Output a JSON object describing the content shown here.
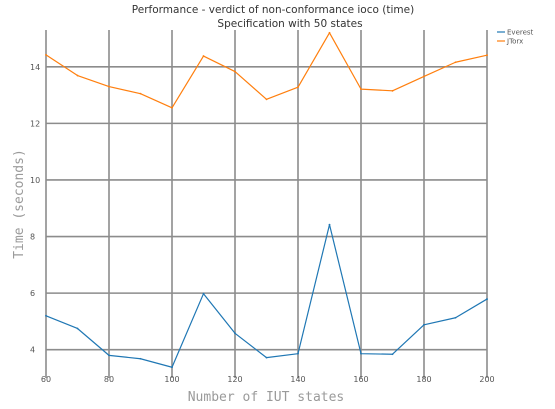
{
  "chart_data": {
    "type": "line",
    "title": "Performance - verdict of non-conformance ioco (time)",
    "subtitle": "Specification with 50 states",
    "xlabel": "Number of IUT states",
    "ylabel": "Time (seconds)",
    "xlim": [
      60,
      200
    ],
    "ylim": [
      3.0,
      15.3
    ],
    "x_ticks": [
      60,
      80,
      100,
      120,
      140,
      160,
      180,
      200
    ],
    "y_ticks": [
      4,
      6,
      8,
      10,
      12,
      14
    ],
    "grid": true,
    "legend_position": "top-right",
    "x": [
      60,
      70,
      80,
      90,
      100,
      110,
      120,
      130,
      140,
      150,
      160,
      170,
      180,
      190,
      200
    ],
    "series": [
      {
        "name": "Everest",
        "color": "#1f77b4",
        "values": [
          5.2,
          4.75,
          3.8,
          3.68,
          3.38,
          5.98,
          4.58,
          3.72,
          3.86,
          8.42,
          3.86,
          3.84,
          4.88,
          5.13,
          5.79
        ]
      },
      {
        "name": "JTorx",
        "color": "#ff7f0e",
        "values": [
          14.42,
          13.69,
          13.3,
          13.05,
          12.55,
          14.38,
          13.83,
          12.85,
          13.28,
          15.2,
          13.21,
          13.15,
          13.66,
          14.16,
          14.41
        ]
      }
    ]
  }
}
